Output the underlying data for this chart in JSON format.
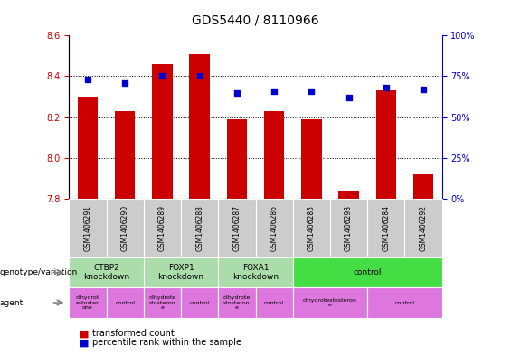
{
  "title": "GDS5440 / 8110966",
  "samples": [
    "GSM1406291",
    "GSM1406290",
    "GSM1406289",
    "GSM1406288",
    "GSM1406287",
    "GSM1406286",
    "GSM1406285",
    "GSM1406293",
    "GSM1406284",
    "GSM1406292"
  ],
  "transformed_count": [
    8.3,
    8.23,
    8.46,
    8.51,
    8.19,
    8.23,
    8.19,
    7.84,
    8.33,
    7.92
  ],
  "percentile_rank": [
    73,
    71,
    75,
    75,
    65,
    66,
    66,
    62,
    68,
    67
  ],
  "ymin": 7.8,
  "ymax": 8.6,
  "yticks": [
    7.8,
    8.0,
    8.2,
    8.4,
    8.6
  ],
  "right_yticks": [
    0,
    25,
    50,
    75,
    100
  ],
  "right_ytick_labels": [
    "0%",
    "25%",
    "50%",
    "75%",
    "100%"
  ],
  "bar_color": "#cc0000",
  "dot_color": "#0000cc",
  "left_axis_color": "#cc0000",
  "right_axis_color": "#0000cc",
  "sample_box_color": "#cccccc",
  "genotype_groups": [
    {
      "label": "CTBP2\nknockdown",
      "start": 0,
      "end": 2,
      "color": "#aaddaa"
    },
    {
      "label": "FOXP1\nknockdown",
      "start": 2,
      "end": 4,
      "color": "#aaddaa"
    },
    {
      "label": "FOXA1\nknockdown",
      "start": 4,
      "end": 6,
      "color": "#aaddaa"
    },
    {
      "label": "control",
      "start": 6,
      "end": 10,
      "color": "#44dd44"
    }
  ],
  "agent_groups": [
    {
      "label": "dihydrot\nestoster\none",
      "start": 0,
      "end": 1
    },
    {
      "label": "control",
      "start": 1,
      "end": 2
    },
    {
      "label": "dihydrote\nstosteron\ne",
      "start": 2,
      "end": 3
    },
    {
      "label": "control",
      "start": 3,
      "end": 4
    },
    {
      "label": "dihydrote\nstosteron\ne",
      "start": 4,
      "end": 5
    },
    {
      "label": "control",
      "start": 5,
      "end": 6
    },
    {
      "label": "dihydrotestosteron\ne",
      "start": 6,
      "end": 8
    },
    {
      "label": "control",
      "start": 8,
      "end": 10
    }
  ],
  "agent_color": "#dd77dd"
}
